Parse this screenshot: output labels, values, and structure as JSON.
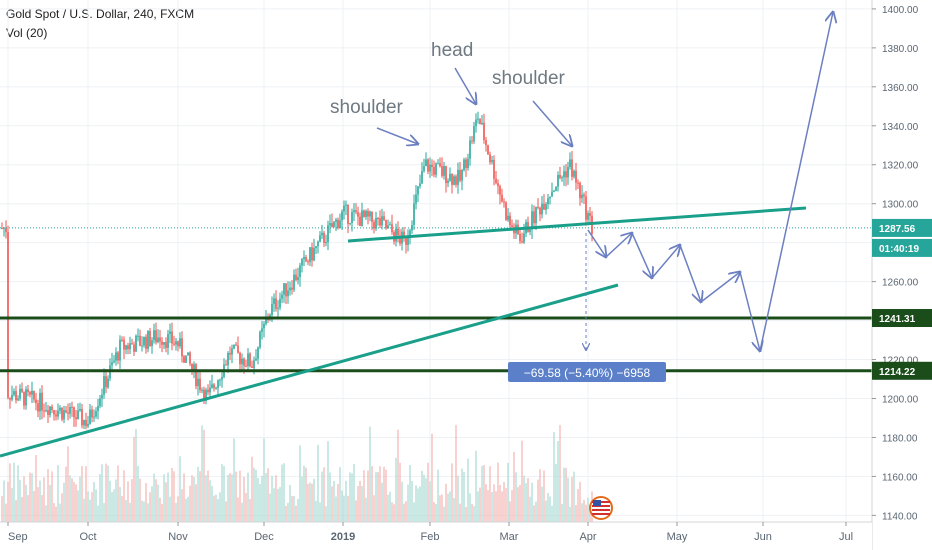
{
  "header": {
    "symbol_line": "Gold Spot / U.S. Dollar, 240, FXCM",
    "volume_line": "Vol (20)"
  },
  "annotations": {
    "head": "head",
    "left_shoulder": "shoulder",
    "right_shoulder": "shoulder",
    "measure_label": "−69.58 (−5.40%) −6958"
  },
  "chart_data": {
    "type": "candlestick",
    "title": "Gold Spot / U.S. Dollar, 240, FXCM",
    "indicator": "Vol (20)",
    "x_tick_labels": [
      "Sep",
      "Oct",
      "Nov",
      "Dec",
      "2019",
      "Feb",
      "Mar",
      "Apr",
      "May",
      "Jun",
      "Jul"
    ],
    "y_tick_labels": [
      "1140.00",
      "1160.00",
      "1180.00",
      "1200.00",
      "1220.00",
      "1240.00",
      "1260.00",
      "1280.00",
      "1300.00",
      "1320.00",
      "1340.00",
      "1360.00",
      "1380.00",
      "1400.00"
    ],
    "ylim": [
      1133,
      1402
    ],
    "price_path": [
      {
        "date": "Sep",
        "price": 1203
      },
      {
        "date": "mid Sep",
        "price": 1198
      },
      {
        "date": "Oct",
        "price": 1188
      },
      {
        "date": "mid Oct",
        "price": 1226
      },
      {
        "date": "late Oct",
        "price": 1232
      },
      {
        "date": "Nov",
        "price": 1228
      },
      {
        "date": "mid Nov",
        "price": 1200
      },
      {
        "date": "late Nov",
        "price": 1224
      },
      {
        "date": "Dec",
        "price": 1218
      },
      {
        "date": "mid Dec",
        "price": 1245
      },
      {
        "date": "late Dec",
        "price": 1280
      },
      {
        "date": "2019",
        "price": 1295
      },
      {
        "date": "mid Jan",
        "price": 1290
      },
      {
        "date": "late Jan",
        "price": 1280
      },
      {
        "date": "Feb",
        "price": 1320
      },
      {
        "date": "mid Feb",
        "price": 1312
      },
      {
        "date": "Feb 20",
        "price": 1345
      },
      {
        "date": "Mar",
        "price": 1290
      },
      {
        "date": "early Mar",
        "price": 1282
      },
      {
        "date": "mid Mar",
        "price": 1305
      },
      {
        "date": "late Mar",
        "price": 1320
      },
      {
        "date": "Apr",
        "price": 1287.56
      }
    ],
    "horizontal_levels": [
      {
        "price": 1241.31,
        "label": "1241.31"
      },
      {
        "price": 1214.22,
        "label": "1214.22"
      }
    ],
    "current_price": {
      "price": 1287.56,
      "label": "1287.56",
      "countdown": "01:40:19"
    },
    "trendlines": [
      {
        "name": "neckline",
        "from": {
          "date": "Dec 2018",
          "price": 1277
        },
        "to": {
          "date": "mid Jun 2019",
          "price": 1292
        }
      },
      {
        "name": "rising support",
        "from": {
          "date": "Sep 2018",
          "price": 1166
        },
        "to": {
          "date": "mid Apr 2019",
          "price": 1254
        }
      }
    ],
    "projected_path": [
      {
        "date": "Apr",
        "price": 1283
      },
      {
        "date": "Apr 10",
        "price": 1265
      },
      {
        "date": "Apr 15",
        "price": 1278
      },
      {
        "date": "late Apr",
        "price": 1255
      },
      {
        "date": "May",
        "price": 1275
      },
      {
        "date": "mid May",
        "price": 1242
      },
      {
        "date": "late May",
        "price": 1261
      },
      {
        "date": "Jun",
        "price": 1218
      },
      {
        "date": "Jul",
        "price": 1400
      }
    ],
    "measurement": {
      "change": -69.58,
      "percent": -5.4,
      "ticks": -6958
    },
    "colors": {
      "up": "#26a69a",
      "down": "#ef5350",
      "trendline": "#1aa08a",
      "level_line": "#1b4d1b",
      "annotation": "#6b7fc1",
      "text": "#5a6672"
    }
  }
}
